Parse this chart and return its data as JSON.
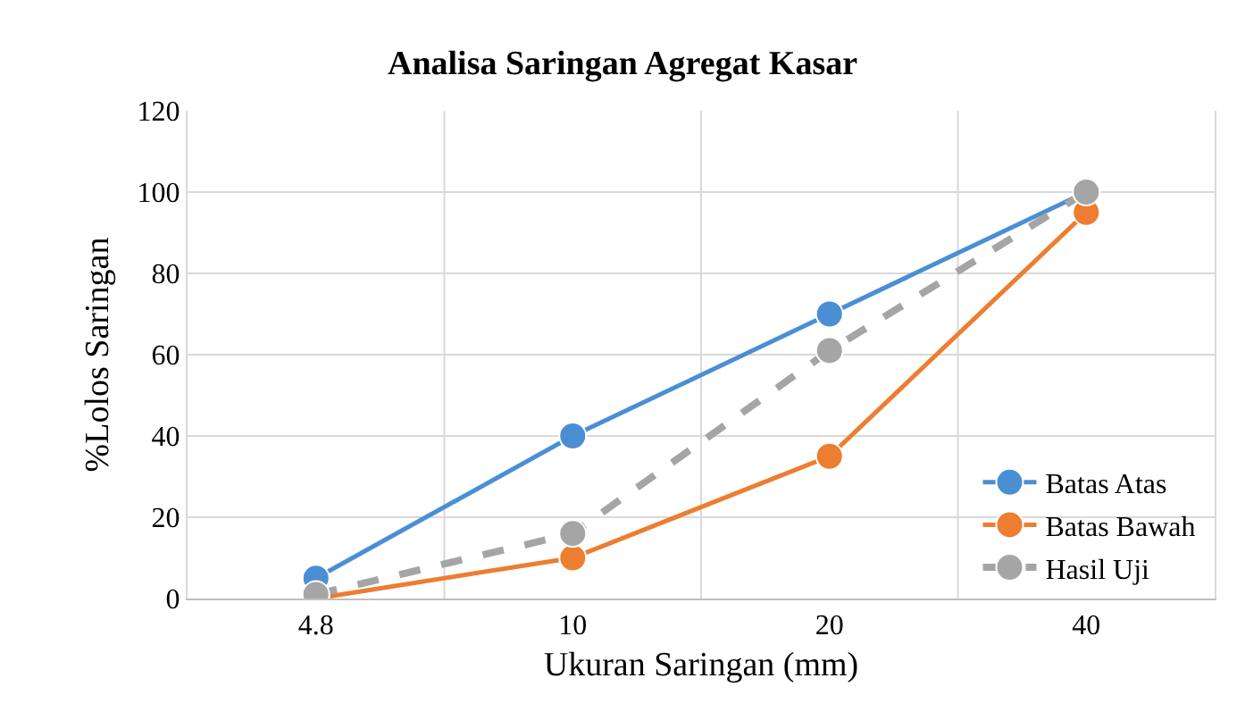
{
  "chart_data": {
    "type": "line",
    "title": "Analisa Saringan Agregat Kasar",
    "xlabel": "Ukuran Saringan (mm)",
    "ylabel": "%Lolos Saringan",
    "categories": [
      "4.8",
      "10",
      "20",
      "40"
    ],
    "series": [
      {
        "name": "Batas Atas",
        "color": "#4a8fd4",
        "values": [
          5,
          40,
          70,
          100
        ]
      },
      {
        "name": "Batas Bawah",
        "color": "#ed7d31",
        "values": [
          0,
          10,
          35,
          95
        ]
      },
      {
        "name": "Hasil Uji",
        "color": "#a5a5a5",
        "values": [
          1,
          16,
          61,
          100
        ],
        "line_style": "dashed"
      }
    ],
    "ylim": [
      0,
      120
    ],
    "yticks": [
      0,
      20,
      40,
      60,
      80,
      100,
      120
    ],
    "grid": true,
    "legend": "bottom right",
    "marker": "circle",
    "line_style": "solid"
  }
}
